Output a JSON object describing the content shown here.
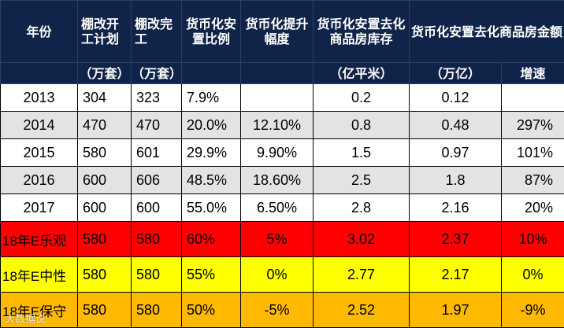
{
  "headers": {
    "year": "年份",
    "shanty_plan": "棚改开工计划",
    "shanty_done": "棚改完工",
    "monetize_ratio": "货币化安置比例",
    "ratio_increase": "货币化提升幅度",
    "inventory": "货币化安置去化商品房库存",
    "amount": "货币化安置去化商品房金额"
  },
  "units": {
    "shanty_plan": "（万套）",
    "shanty_done": "（万套）",
    "inventory": "（亿平米）",
    "amount": "（万亿）",
    "growth": "增速"
  },
  "rows": [
    {
      "year": "2013",
      "plan": "304",
      "done": "323",
      "ratio": "7.9%",
      "increase": "",
      "inventory": "0.2",
      "amount": "0.12",
      "growth": ""
    },
    {
      "year": "2014",
      "plan": "470",
      "done": "470",
      "ratio": "20.0%",
      "increase": "12.10%",
      "inventory": "0.8",
      "amount": "0.48",
      "growth": "297%"
    },
    {
      "year": "2015",
      "plan": "580",
      "done": "601",
      "ratio": "29.9%",
      "increase": "9.90%",
      "inventory": "1.5",
      "amount": "0.97",
      "growth": "101%"
    },
    {
      "year": "2016",
      "plan": "600",
      "done": "606",
      "ratio": "48.5%",
      "increase": "18.60%",
      "inventory": "2.5",
      "amount": "1.8",
      "growth": "87%"
    },
    {
      "year": "2017",
      "plan": "600",
      "done": "600",
      "ratio": "55.0%",
      "increase": "6.50%",
      "inventory": "2.8",
      "amount": "2.16",
      "growth": "20%"
    }
  ],
  "scenarios": [
    {
      "year": "18年E乐观",
      "plan": "580",
      "done": "580",
      "ratio": "60%",
      "increase": "5%",
      "inventory": "3.02",
      "amount": "2.37",
      "growth": "10%",
      "color": "#ff0000"
    },
    {
      "year": "18年E中性",
      "plan": "580",
      "done": "580",
      "ratio": "55%",
      "increase": "0%",
      "inventory": "2.77",
      "amount": "2.17",
      "growth": "0%",
      "color": "#ffff00"
    },
    {
      "year": "18年E保守",
      "plan": "580",
      "done": "580",
      "ratio": "50%",
      "increase": "-5%",
      "inventory": "2.52",
      "amount": "1.97",
      "growth": "-9%",
      "color": "#ffb900"
    }
  ],
  "watermark": "大数据说"
}
